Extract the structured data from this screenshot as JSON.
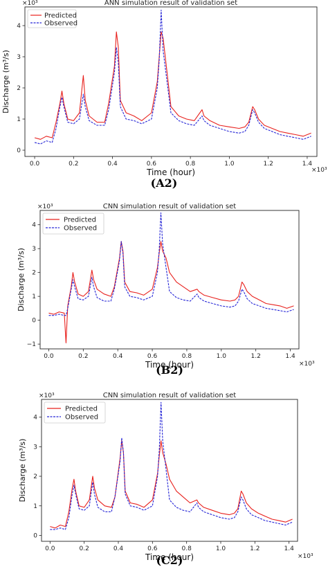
{
  "chart_data": [
    {
      "type": "line",
      "caption": "(A2)",
      "title": "ANN simulation result of validation set",
      "xlabel": "Time (hour)",
      "ylabel": "Discharge (m³/s)",
      "x_multiplier": "×10³",
      "y_multiplier": "×10³",
      "xlim": [
        -0.05,
        1.45
      ],
      "ylim": [
        -0.2,
        4.6
      ],
      "xticks": [
        "0.0",
        "0.2",
        "0.4",
        "0.6",
        "0.8",
        "1.0",
        "1.2",
        "1.4"
      ],
      "yticks": [
        "0",
        "1",
        "2",
        "3",
        "4"
      ],
      "legend_position": "top-left",
      "grid": false,
      "series": [
        {
          "name": "Predicted",
          "color": "#e8201c",
          "style": "solid",
          "x": [
            0.0,
            0.03,
            0.06,
            0.09,
            0.11,
            0.13,
            0.14,
            0.15,
            0.17,
            0.2,
            0.23,
            0.25,
            0.26,
            0.28,
            0.32,
            0.36,
            0.38,
            0.41,
            0.42,
            0.43,
            0.44,
            0.47,
            0.51,
            0.55,
            0.6,
            0.63,
            0.64,
            0.65,
            0.66,
            0.68,
            0.7,
            0.74,
            0.78,
            0.82,
            0.86,
            0.87,
            0.9,
            0.95,
            1.0,
            1.05,
            1.08,
            1.1,
            1.12,
            1.13,
            1.15,
            1.18,
            1.22,
            1.26,
            1.3,
            1.34,
            1.38,
            1.42
          ],
          "y": [
            0.4,
            0.35,
            0.45,
            0.4,
            0.9,
            1.5,
            1.9,
            1.5,
            1.0,
            0.95,
            1.2,
            2.4,
            1.6,
            1.1,
            0.9,
            0.9,
            1.5,
            2.7,
            3.8,
            3.3,
            1.6,
            1.2,
            1.1,
            0.95,
            1.2,
            2.2,
            3.0,
            3.8,
            3.6,
            2.5,
            1.4,
            1.1,
            1.0,
            0.95,
            1.3,
            1.1,
            0.95,
            0.8,
            0.75,
            0.7,
            0.75,
            0.9,
            1.4,
            1.3,
            1.0,
            0.8,
            0.7,
            0.6,
            0.55,
            0.5,
            0.45,
            0.55
          ]
        },
        {
          "name": "Observed",
          "color": "#2424d6",
          "style": "dashed",
          "x": [
            0.0,
            0.03,
            0.06,
            0.09,
            0.11,
            0.13,
            0.14,
            0.15,
            0.17,
            0.2,
            0.23,
            0.25,
            0.26,
            0.28,
            0.32,
            0.36,
            0.38,
            0.41,
            0.42,
            0.43,
            0.44,
            0.47,
            0.51,
            0.55,
            0.6,
            0.63,
            0.64,
            0.65,
            0.66,
            0.68,
            0.7,
            0.74,
            0.78,
            0.82,
            0.86,
            0.87,
            0.9,
            0.95,
            1.0,
            1.05,
            1.08,
            1.1,
            1.12,
            1.13,
            1.15,
            1.18,
            1.22,
            1.26,
            1.3,
            1.34,
            1.38,
            1.42
          ],
          "y": [
            0.25,
            0.2,
            0.3,
            0.25,
            0.7,
            1.4,
            1.7,
            1.4,
            0.9,
            0.85,
            1.0,
            1.8,
            1.4,
            0.95,
            0.8,
            0.8,
            1.3,
            2.5,
            3.3,
            2.8,
            1.4,
            1.0,
            0.95,
            0.85,
            1.0,
            2.0,
            2.9,
            4.5,
            3.2,
            2.2,
            1.2,
            0.95,
            0.85,
            0.8,
            1.1,
            0.95,
            0.8,
            0.7,
            0.6,
            0.55,
            0.6,
            0.8,
            1.3,
            1.2,
            0.9,
            0.7,
            0.6,
            0.5,
            0.45,
            0.4,
            0.35,
            0.45
          ]
        }
      ]
    },
    {
      "type": "line",
      "caption": "(B2)",
      "title": "CNN simulation result of validation set",
      "xlabel": "Time (hour)",
      "ylabel": "Discharge (m³/s)",
      "x_multiplier": "×10³",
      "y_multiplier": "×10³",
      "xlim": [
        -0.05,
        1.45
      ],
      "ylim": [
        -1.2,
        4.6
      ],
      "xticks": [
        "0.0",
        "0.2",
        "0.4",
        "0.6",
        "0.8",
        "1.0",
        "1.2",
        "1.4"
      ],
      "yticks": [
        "−1",
        "0",
        "1",
        "2",
        "3",
        "4"
      ],
      "legend_position": "top-left",
      "grid": false,
      "series": [
        {
          "name": "Predicted",
          "color": "#e8201c",
          "style": "solid",
          "x": [
            0.0,
            0.03,
            0.06,
            0.09,
            0.1,
            0.11,
            0.13,
            0.14,
            0.15,
            0.17,
            0.2,
            0.23,
            0.25,
            0.26,
            0.28,
            0.32,
            0.36,
            0.38,
            0.41,
            0.42,
            0.43,
            0.44,
            0.47,
            0.51,
            0.55,
            0.6,
            0.63,
            0.64,
            0.65,
            0.66,
            0.68,
            0.7,
            0.74,
            0.78,
            0.82,
            0.86,
            0.87,
            0.9,
            0.95,
            1.0,
            1.05,
            1.08,
            1.1,
            1.12,
            1.13,
            1.15,
            1.18,
            1.22,
            1.26,
            1.3,
            1.34,
            1.38,
            1.42
          ],
          "y": [
            0.3,
            0.25,
            0.35,
            0.3,
            -0.95,
            0.6,
            1.4,
            2.0,
            1.6,
            1.1,
            1.0,
            1.2,
            2.1,
            1.7,
            1.3,
            1.1,
            1.0,
            1.4,
            2.6,
            3.3,
            2.9,
            1.6,
            1.2,
            1.15,
            1.05,
            1.3,
            2.2,
            2.8,
            3.3,
            2.9,
            2.6,
            2.0,
            1.6,
            1.4,
            1.2,
            1.3,
            1.2,
            1.05,
            0.95,
            0.85,
            0.8,
            0.85,
            1.0,
            1.6,
            1.5,
            1.2,
            1.0,
            0.85,
            0.7,
            0.65,
            0.6,
            0.5,
            0.6
          ]
        },
        {
          "name": "Observed",
          "color": "#2424d6",
          "style": "dashed",
          "x": [
            0.0,
            0.03,
            0.06,
            0.09,
            0.1,
            0.11,
            0.13,
            0.14,
            0.15,
            0.17,
            0.2,
            0.23,
            0.25,
            0.26,
            0.28,
            0.32,
            0.36,
            0.38,
            0.41,
            0.42,
            0.43,
            0.44,
            0.47,
            0.51,
            0.55,
            0.6,
            0.63,
            0.64,
            0.65,
            0.66,
            0.68,
            0.7,
            0.74,
            0.78,
            0.82,
            0.86,
            0.87,
            0.9,
            0.95,
            1.0,
            1.05,
            1.08,
            1.1,
            1.12,
            1.13,
            1.15,
            1.18,
            1.22,
            1.26,
            1.3,
            1.34,
            1.38,
            1.42
          ],
          "y": [
            0.2,
            0.2,
            0.25,
            0.2,
            0.2,
            0.5,
            1.3,
            1.7,
            1.4,
            0.9,
            0.85,
            1.0,
            1.8,
            1.4,
            0.95,
            0.8,
            0.8,
            1.3,
            2.5,
            3.3,
            2.8,
            1.4,
            1.0,
            0.95,
            0.85,
            1.0,
            2.0,
            2.9,
            4.5,
            3.2,
            2.2,
            1.2,
            0.95,
            0.85,
            0.8,
            1.1,
            0.95,
            0.8,
            0.7,
            0.6,
            0.55,
            0.6,
            0.8,
            1.3,
            1.2,
            0.9,
            0.7,
            0.6,
            0.5,
            0.45,
            0.4,
            0.35,
            0.45
          ]
        }
      ]
    },
    {
      "type": "line",
      "caption": "(C2)",
      "title": "CNN simulation result of validation set",
      "xlabel": "Time (hour)",
      "ylabel": "Discharge (m³/s)",
      "x_multiplier": "×10³",
      "y_multiplier": "×10³",
      "xlim": [
        -0.05,
        1.45
      ],
      "ylim": [
        -0.2,
        4.6
      ],
      "xticks": [
        "0.0",
        "0.2",
        "0.4",
        "0.6",
        "0.8",
        "1.0",
        "1.2",
        "1.4"
      ],
      "yticks": [
        "0",
        "1",
        "2",
        "3",
        "4"
      ],
      "legend_position": "top-left",
      "grid": false,
      "series": [
        {
          "name": "Predicted",
          "color": "#e8201c",
          "style": "solid",
          "x": [
            0.0,
            0.03,
            0.06,
            0.09,
            0.11,
            0.13,
            0.14,
            0.15,
            0.17,
            0.2,
            0.23,
            0.25,
            0.26,
            0.28,
            0.32,
            0.36,
            0.38,
            0.41,
            0.42,
            0.43,
            0.44,
            0.47,
            0.51,
            0.55,
            0.6,
            0.63,
            0.64,
            0.65,
            0.66,
            0.68,
            0.7,
            0.74,
            0.78,
            0.82,
            0.86,
            0.87,
            0.9,
            0.95,
            1.0,
            1.05,
            1.08,
            1.1,
            1.12,
            1.13,
            1.15,
            1.18,
            1.22,
            1.26,
            1.3,
            1.34,
            1.38,
            1.42
          ],
          "y": [
            0.3,
            0.25,
            0.35,
            0.3,
            0.8,
            1.6,
            1.9,
            1.5,
            1.0,
            0.95,
            1.2,
            2.0,
            1.6,
            1.2,
            1.0,
            0.95,
            1.3,
            2.6,
            3.2,
            2.8,
            1.5,
            1.1,
            1.05,
            0.95,
            1.2,
            2.1,
            2.7,
            3.2,
            2.8,
            2.4,
            1.9,
            1.5,
            1.3,
            1.1,
            1.2,
            1.1,
            0.95,
            0.85,
            0.75,
            0.7,
            0.75,
            0.9,
            1.5,
            1.4,
            1.1,
            0.9,
            0.75,
            0.65,
            0.55,
            0.5,
            0.45,
            0.55
          ]
        },
        {
          "name": "Observed",
          "color": "#2424d6",
          "style": "dashed",
          "x": [
            0.0,
            0.03,
            0.06,
            0.09,
            0.11,
            0.13,
            0.14,
            0.15,
            0.17,
            0.2,
            0.23,
            0.25,
            0.26,
            0.28,
            0.32,
            0.36,
            0.38,
            0.41,
            0.42,
            0.43,
            0.44,
            0.47,
            0.51,
            0.55,
            0.6,
            0.63,
            0.64,
            0.65,
            0.66,
            0.68,
            0.7,
            0.74,
            0.78,
            0.82,
            0.86,
            0.87,
            0.9,
            0.95,
            1.0,
            1.05,
            1.08,
            1.1,
            1.12,
            1.13,
            1.15,
            1.18,
            1.22,
            1.26,
            1.3,
            1.34,
            1.38,
            1.42
          ],
          "y": [
            0.2,
            0.2,
            0.25,
            0.2,
            0.6,
            1.4,
            1.7,
            1.4,
            0.9,
            0.85,
            1.0,
            1.8,
            1.4,
            0.95,
            0.8,
            0.8,
            1.3,
            2.5,
            3.3,
            2.8,
            1.4,
            1.0,
            0.95,
            0.85,
            1.0,
            2.0,
            2.9,
            4.5,
            3.2,
            2.2,
            1.2,
            0.95,
            0.85,
            0.8,
            1.1,
            0.95,
            0.8,
            0.7,
            0.6,
            0.55,
            0.6,
            0.8,
            1.3,
            1.2,
            0.9,
            0.7,
            0.6,
            0.5,
            0.45,
            0.4,
            0.35,
            0.45
          ]
        }
      ]
    }
  ]
}
